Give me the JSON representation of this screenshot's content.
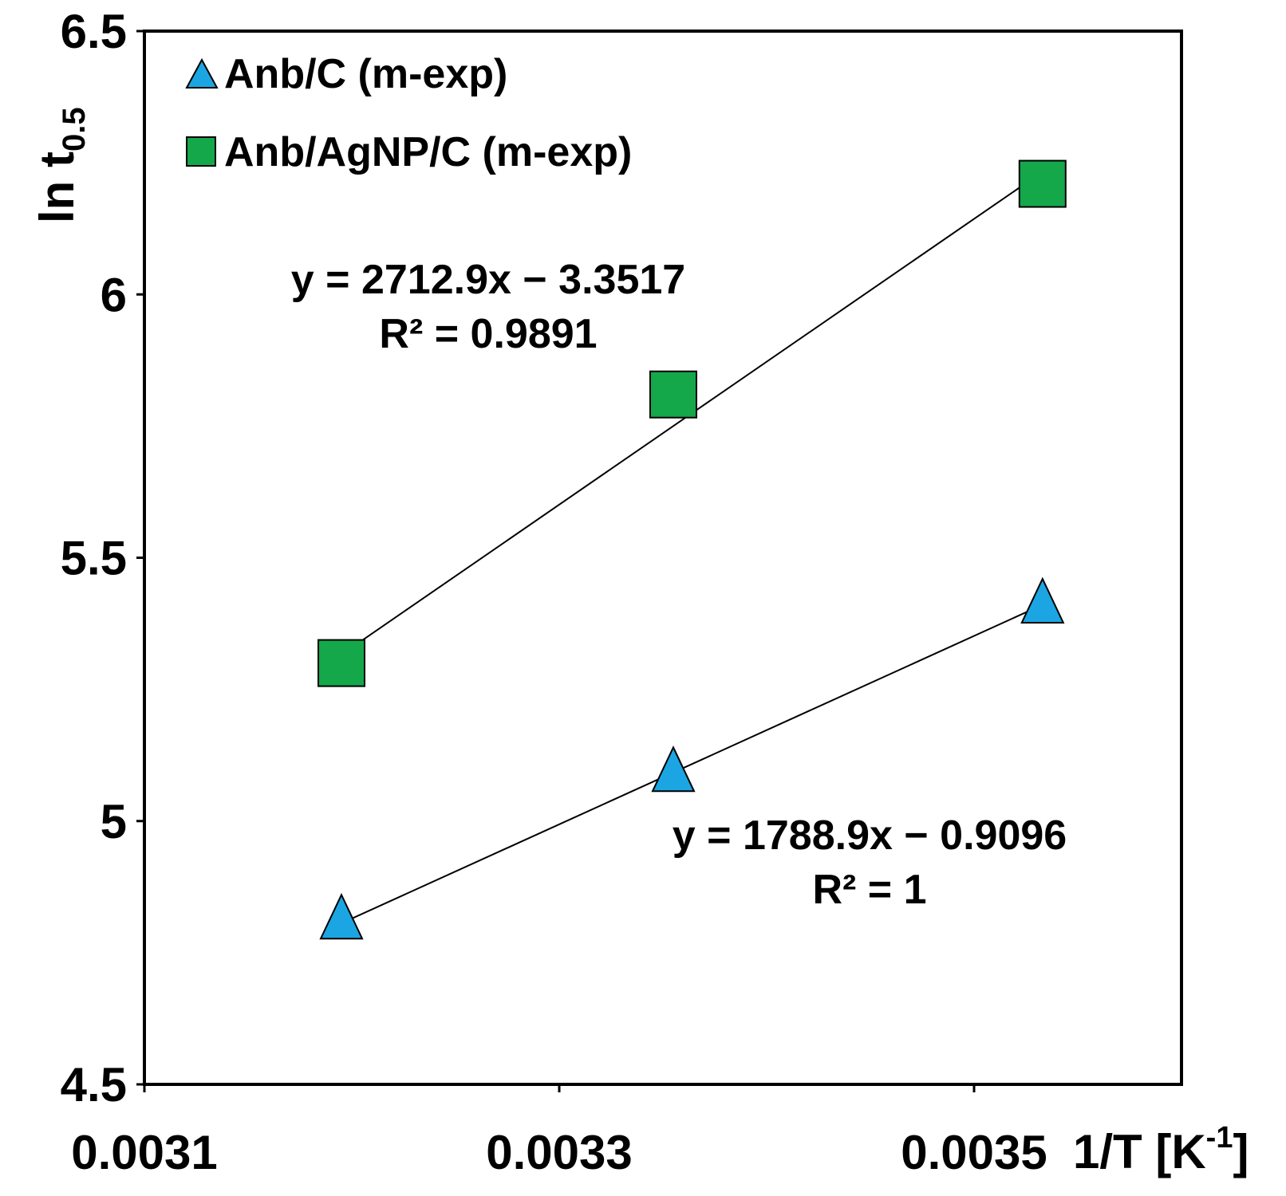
{
  "chart_data": {
    "type": "scatter",
    "title": "",
    "xlabel": "1/T [K",
    "xlabel_superscript": "-1",
    "xlabel_suffix": "]",
    "ylabel": "ln t",
    "ylabel_subscript": "0.5",
    "xlim": [
      0.0031,
      0.0036
    ],
    "ylim": [
      4.5,
      6.5
    ],
    "x_ticks": [
      0.0031,
      0.0033,
      0.0035
    ],
    "x_tick_labels": [
      "0.0031",
      "0.0033",
      "0.0035"
    ],
    "y_ticks": [
      4.5,
      5,
      5.5,
      6,
      6.5
    ],
    "y_tick_labels": [
      "4.5",
      "5",
      "5.5",
      "6",
      "6.5"
    ],
    "grid": false,
    "legend_position": "top-left",
    "series": [
      {
        "name": "Anb/C (m-exp)",
        "marker": "triangle",
        "color": "#1ba6e3",
        "x": [
          0.003195,
          0.003355,
          0.003533
        ],
        "y": [
          4.81,
          5.09,
          5.41
        ],
        "trendline": {
          "slope": 1788.9,
          "intercept": -0.9096
        },
        "equation": "y = 1788.9x − 0.9096",
        "r2": "R² = 1"
      },
      {
        "name": "Anb/AgNP/C (m-exp)",
        "marker": "square",
        "color": "#14a84a",
        "x": [
          0.003195,
          0.003355,
          0.003533
        ],
        "y": [
          5.3,
          5.81,
          6.21
        ],
        "trendline": {
          "slope": 2712.9,
          "intercept": -3.3517
        },
        "equation": "y = 2712.9x − 3.3517",
        "r2": "R² = 0.9891"
      }
    ]
  }
}
